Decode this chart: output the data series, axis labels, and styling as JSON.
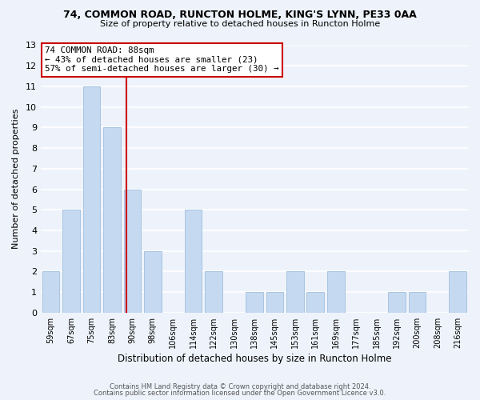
{
  "title1": "74, COMMON ROAD, RUNCTON HOLME, KING'S LYNN, PE33 0AA",
  "title2": "Size of property relative to detached houses in Runcton Holme",
  "xlabel": "Distribution of detached houses by size in Runcton Holme",
  "ylabel": "Number of detached properties",
  "categories": [
    "59sqm",
    "67sqm",
    "75sqm",
    "83sqm",
    "90sqm",
    "98sqm",
    "106sqm",
    "114sqm",
    "122sqm",
    "130sqm",
    "138sqm",
    "145sqm",
    "153sqm",
    "161sqm",
    "169sqm",
    "177sqm",
    "185sqm",
    "192sqm",
    "200sqm",
    "208sqm",
    "216sqm"
  ],
  "values": [
    2,
    5,
    11,
    9,
    6,
    3,
    0,
    5,
    2,
    0,
    1,
    1,
    2,
    1,
    2,
    0,
    0,
    1,
    1,
    0,
    2
  ],
  "bar_color": "#c5d9f0",
  "bar_edge_color": "#a8c4e0",
  "vline_color": "#cc0000",
  "vline_x": 3.72,
  "annotation_title": "74 COMMON ROAD: 88sqm",
  "annotation_line1": "← 43% of detached houses are smaller (23)",
  "annotation_line2": "57% of semi-detached houses are larger (30) →",
  "annotation_box_facecolor": "#ffffff",
  "annotation_box_edgecolor": "#cc0000",
  "ylim": [
    0,
    13
  ],
  "yticks": [
    0,
    1,
    2,
    3,
    4,
    5,
    6,
    7,
    8,
    9,
    10,
    11,
    12,
    13
  ],
  "footnote1": "Contains HM Land Registry data © Crown copyright and database right 2024.",
  "footnote2": "Contains public sector information licensed under the Open Government Licence v3.0.",
  "bg_color": "#eef3fb",
  "grid_color": "#ffffff",
  "title1_fontsize": 9.0,
  "title2_fontsize": 8.0
}
